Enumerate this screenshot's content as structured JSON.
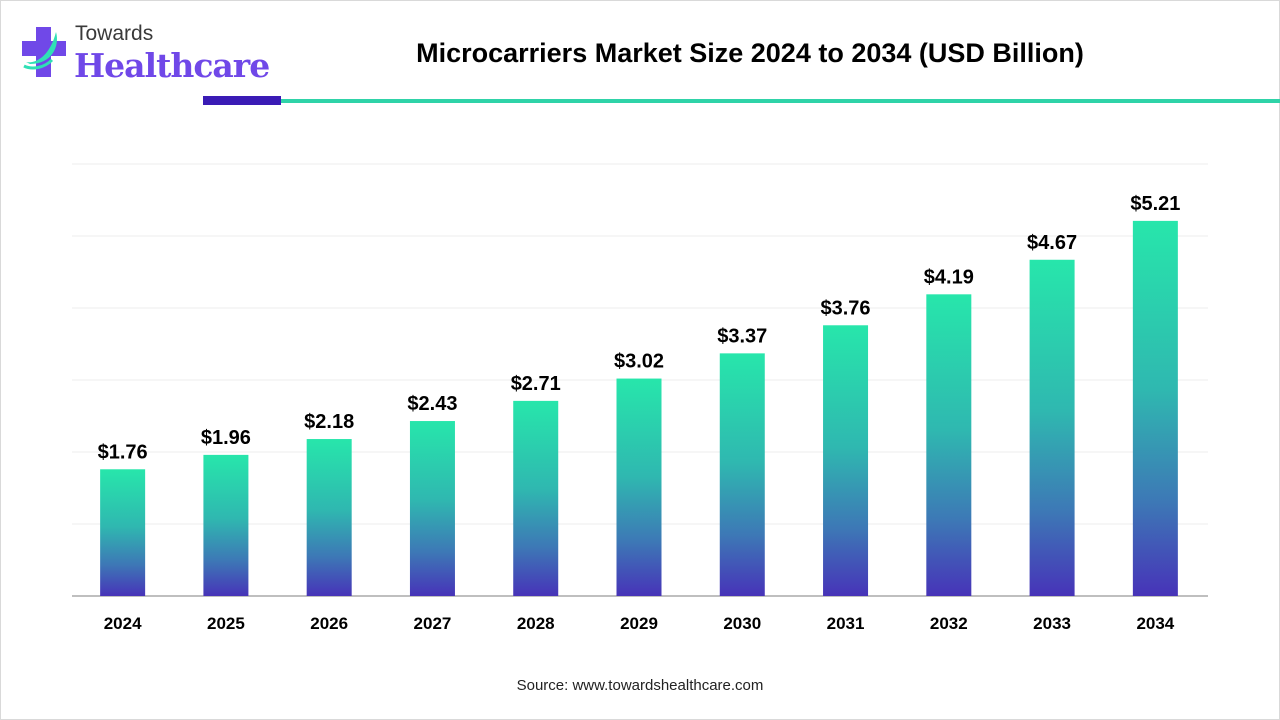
{
  "logo": {
    "line1": "Towards",
    "line2": "Healthcare"
  },
  "colors": {
    "accent_dark": "#3a1bb5",
    "accent_teal": "#2fd3a8",
    "bar_top": "#27e6ab",
    "bar_bottom": "#4733b8"
  },
  "chart_data": {
    "type": "bar",
    "title": "Microcarriers Market Size 2024 to 2034 (USD Billion)",
    "categories": [
      "2024",
      "2025",
      "2026",
      "2027",
      "2028",
      "2029",
      "2030",
      "2031",
      "2032",
      "2033",
      "2034"
    ],
    "values": [
      1.76,
      1.96,
      2.18,
      2.43,
      2.71,
      3.02,
      3.37,
      3.76,
      4.19,
      4.67,
      5.21
    ],
    "data_labels": [
      "$1.76",
      "$1.96",
      "$2.18",
      "$2.43",
      "$2.71",
      "$3.02",
      "$3.37",
      "$3.76",
      "$4.19",
      "$4.67",
      "$5.21"
    ],
    "xlabel": "",
    "ylabel": "",
    "ylim": [
      0,
      6
    ],
    "grid": true,
    "legend": "none"
  },
  "source": "Source: www.towardshealthcare.com"
}
